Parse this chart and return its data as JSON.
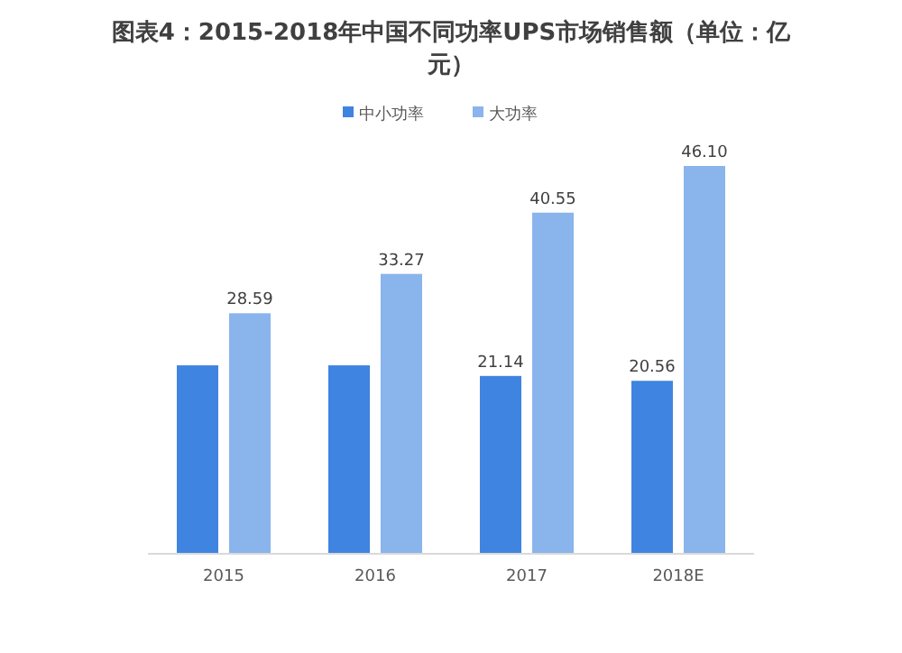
{
  "chart_data": {
    "type": "bar",
    "title": "图表4：2015-2018年中国不同功率UPS市场销售额（单位：亿元）",
    "categories": [
      "2015",
      "2016",
      "2017",
      "2018E"
    ],
    "series": [
      {
        "name": "中小功率",
        "color": "#3f84e0",
        "values": [
          22.4,
          22.4,
          21.14,
          20.56
        ],
        "value_labels": [
          null,
          null,
          "21.14",
          "20.56"
        ]
      },
      {
        "name": "大功率",
        "color": "#8ab4ec",
        "values": [
          28.59,
          33.27,
          40.55,
          46.1
        ],
        "value_labels": [
          "28.59",
          "33.27",
          "40.55",
          "46.10"
        ]
      }
    ],
    "legend": "top"
  }
}
